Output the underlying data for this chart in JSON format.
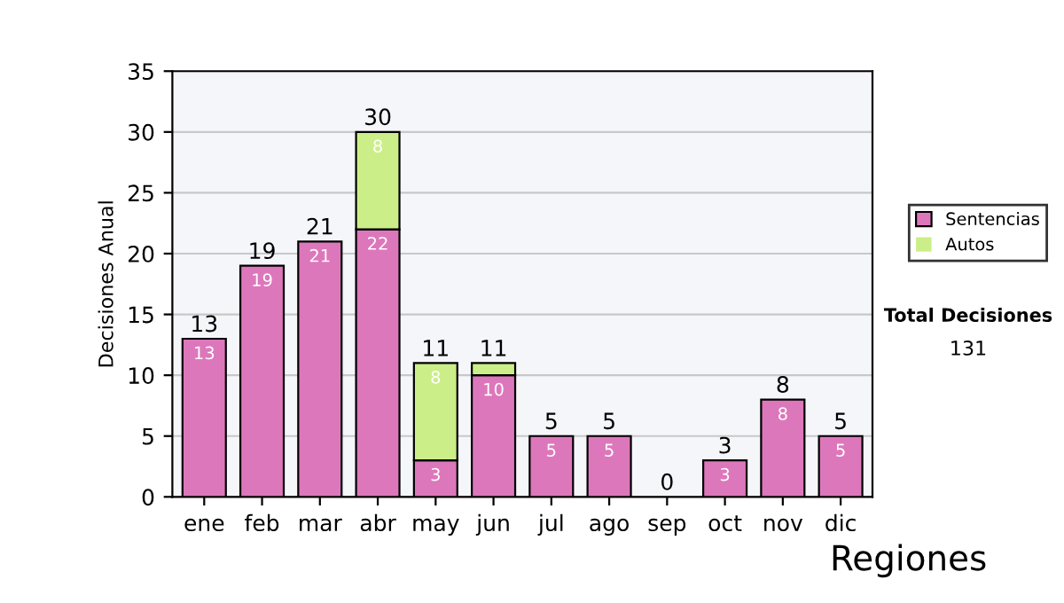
{
  "chart_data": {
    "type": "bar",
    "stacked": true,
    "ylabel": "Decisiones Anual",
    "categories": [
      "ene",
      "feb",
      "mar",
      "abr",
      "may",
      "jun",
      "jul",
      "ago",
      "sep",
      "oct",
      "nov",
      "dic"
    ],
    "series": [
      {
        "name": "Sentencias",
        "color": "#dd77bb",
        "values": [
          13,
          19,
          21,
          22,
          3,
          10,
          5,
          5,
          0,
          3,
          8,
          5
        ],
        "value_labels": [
          "13",
          "19",
          "21",
          "22",
          "3",
          "10",
          "5",
          "5",
          null,
          "3",
          "8",
          "5"
        ]
      },
      {
        "name": "Autos",
        "color": "#ccee88",
        "values": [
          0,
          0,
          0,
          8,
          8,
          1,
          0,
          0,
          0,
          0,
          0,
          0
        ],
        "value_labels": [
          null,
          null,
          null,
          "8",
          "8",
          null,
          null,
          null,
          null,
          null,
          null,
          null
        ]
      }
    ],
    "totals": [
      "13",
      "19",
      "21",
      "30",
      "11",
      "11",
      "5",
      "5",
      "0",
      "3",
      "8",
      "5"
    ],
    "ylim": [
      0,
      35
    ],
    "yticks": [
      0,
      5,
      10,
      15,
      20,
      25,
      30,
      35
    ],
    "grid": "y",
    "legend": "right",
    "annotations": [
      "Total Decisiones",
      "131",
      "Regiones"
    ]
  }
}
